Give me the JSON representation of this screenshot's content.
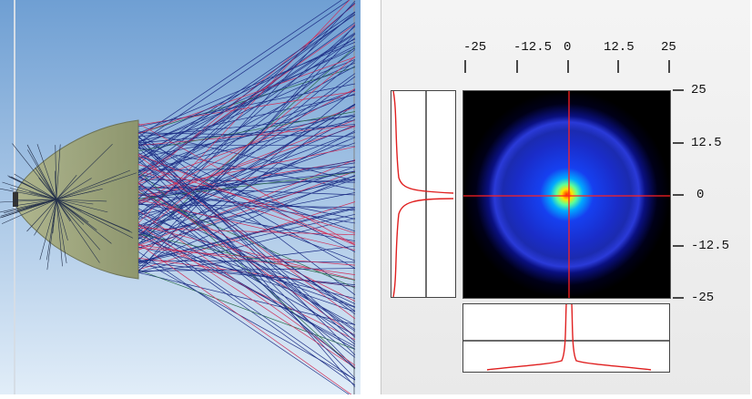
{
  "viewer": {
    "lens_color": "#9ea37a",
    "ray_colors": [
      "#1e2f86",
      "#d0305a",
      "#2a6a4a"
    ],
    "background_top": "#7aa6d6",
    "background_bottom": "#dbe9f6"
  },
  "spot_diagram": {
    "x_ticks": [
      "-25",
      "-12.5",
      "0",
      "12.5",
      "25"
    ],
    "y_ticks": [
      "25",
      "12.5",
      "0",
      "-12.5",
      "-25"
    ],
    "crosshair_color": "#ff2020",
    "profile_color": "#e02020"
  }
}
